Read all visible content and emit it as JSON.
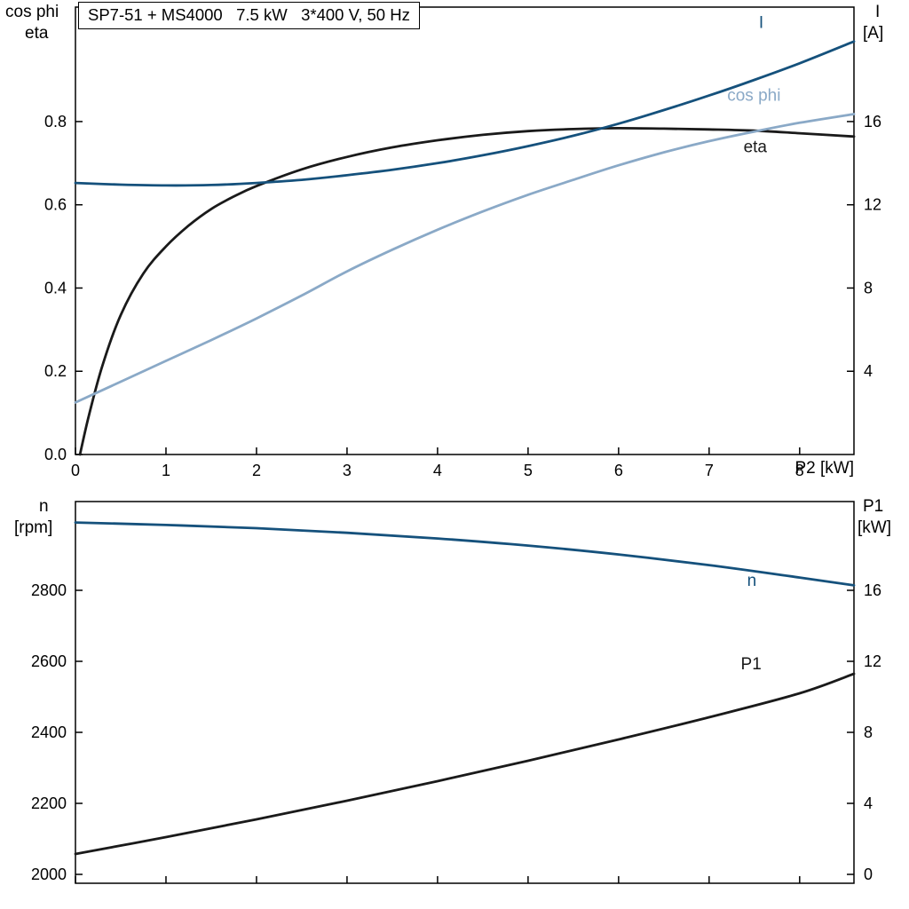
{
  "colors": {
    "dark_blue": "#15517c",
    "light_blue": "#8aa9c7",
    "black": "#1a1a1a",
    "frame": "#000000"
  },
  "chart_data": [
    {
      "type": "line",
      "title": "SP7-51 + MS4000   7.5 kW   3*400 V, 50 Hz",
      "x_axis": {
        "label": "P2 [kW]",
        "range": [
          0,
          8.6
        ],
        "ticks": [
          0,
          1,
          2,
          3,
          4,
          5,
          6,
          7,
          8
        ],
        "show_tick_labels": true,
        "tick_decimals": 0
      },
      "left_axis": {
        "title1": "cos phi",
        "title2": "eta",
        "range": [
          0,
          1.075
        ],
        "ticks": [
          0.0,
          0.2,
          0.4,
          0.6,
          0.8
        ],
        "tick_decimals": 1
      },
      "right_axis": {
        "title1": "I",
        "title2": "[A]",
        "range": [
          0,
          21.5
        ],
        "ticks": [
          4,
          8,
          12,
          16
        ],
        "tick_decimals": 0
      },
      "series": [
        {
          "name": "eta",
          "axis": "left",
          "color": "#1a1a1a",
          "label": "eta",
          "label_at": [
            7.38,
            0.726
          ],
          "points": [
            [
              0.05,
              0
            ],
            [
              0.15,
              0.095
            ],
            [
              0.3,
              0.215
            ],
            [
              0.5,
              0.335
            ],
            [
              0.75,
              0.435
            ],
            [
              1,
              0.5
            ],
            [
              1.25,
              0.55
            ],
            [
              1.5,
              0.59
            ],
            [
              1.75,
              0.62
            ],
            [
              2,
              0.645
            ],
            [
              2.5,
              0.685
            ],
            [
              3,
              0.715
            ],
            [
              3.5,
              0.738
            ],
            [
              4,
              0.755
            ],
            [
              4.5,
              0.768
            ],
            [
              5,
              0.777
            ],
            [
              5.5,
              0.782
            ],
            [
              6,
              0.784
            ],
            [
              6.5,
              0.783
            ],
            [
              7,
              0.781
            ],
            [
              7.5,
              0.778
            ],
            [
              8,
              0.772
            ],
            [
              8.6,
              0.764
            ]
          ]
        },
        {
          "name": "cos phi",
          "axis": "left",
          "color": "#8aa9c7",
          "label": "cos phi",
          "label_at": [
            7.2,
            0.85
          ],
          "points": [
            [
              0,
              0.125
            ],
            [
              0.5,
              0.175
            ],
            [
              1,
              0.225
            ],
            [
              1.5,
              0.275
            ],
            [
              2,
              0.327
            ],
            [
              2.5,
              0.382
            ],
            [
              3,
              0.44
            ],
            [
              3.5,
              0.492
            ],
            [
              4,
              0.54
            ],
            [
              4.5,
              0.584
            ],
            [
              5,
              0.624
            ],
            [
              5.5,
              0.66
            ],
            [
              6,
              0.695
            ],
            [
              6.5,
              0.726
            ],
            [
              7,
              0.753
            ],
            [
              7.5,
              0.776
            ],
            [
              8,
              0.797
            ],
            [
              8.6,
              0.818
            ]
          ]
        },
        {
          "name": "I",
          "axis": "right",
          "color": "#15517c",
          "label": "I",
          "label_at": [
            7.55,
            20.5
          ],
          "points": [
            [
              0,
              13.05
            ],
            [
              0.5,
              12.97
            ],
            [
              1,
              12.93
            ],
            [
              1.5,
              12.95
            ],
            [
              2,
              13.05
            ],
            [
              2.5,
              13.2
            ],
            [
              3,
              13.42
            ],
            [
              3.5,
              13.68
            ],
            [
              4,
              14.0
            ],
            [
              4.5,
              14.38
            ],
            [
              5,
              14.82
            ],
            [
              5.5,
              15.32
            ],
            [
              6,
              15.9
            ],
            [
              6.5,
              16.55
            ],
            [
              7,
              17.25
            ],
            [
              7.5,
              18.0
            ],
            [
              8,
              18.8
            ],
            [
              8.6,
              19.85
            ]
          ]
        }
      ]
    },
    {
      "type": "line",
      "title": "",
      "x_axis": {
        "label": "",
        "range": [
          0,
          8.6
        ],
        "ticks": [
          0,
          1,
          2,
          3,
          4,
          5,
          6,
          7,
          8
        ],
        "show_tick_labels": false,
        "tick_decimals": 0
      },
      "left_axis": {
        "title1": "n",
        "title2": "[rpm]",
        "range": [
          1975,
          3050
        ],
        "ticks": [
          2000,
          2200,
          2400,
          2600,
          2800
        ],
        "tick_decimals": 0
      },
      "right_axis": {
        "title1": "P1",
        "title2": "[kW]",
        "range": [
          -0.5,
          21
        ],
        "ticks": [
          0,
          4,
          8,
          12,
          16
        ],
        "tick_decimals": 0
      },
      "series": [
        {
          "name": "P1",
          "axis": "right",
          "color": "#1a1a1a",
          "label": "P1",
          "label_at": [
            7.35,
            11.55
          ],
          "points": [
            [
              0,
              1.15
            ],
            [
              1,
              2.1
            ],
            [
              2,
              3.1
            ],
            [
              3,
              4.15
            ],
            [
              4,
              5.25
            ],
            [
              5,
              6.4
            ],
            [
              6,
              7.6
            ],
            [
              7,
              8.85
            ],
            [
              8,
              10.2
            ],
            [
              8.6,
              11.3
            ]
          ]
        },
        {
          "name": "n",
          "axis": "left",
          "color": "#15517c",
          "label": "n",
          "label_at": [
            7.42,
            2812
          ],
          "points": [
            [
              0,
              2991
            ],
            [
              1,
              2984
            ],
            [
              2,
              2975
            ],
            [
              3,
              2962
            ],
            [
              4,
              2946
            ],
            [
              5,
              2926
            ],
            [
              6,
              2901
            ],
            [
              7,
              2871
            ],
            [
              8,
              2836
            ],
            [
              8.6,
              2814
            ]
          ]
        }
      ]
    }
  ]
}
